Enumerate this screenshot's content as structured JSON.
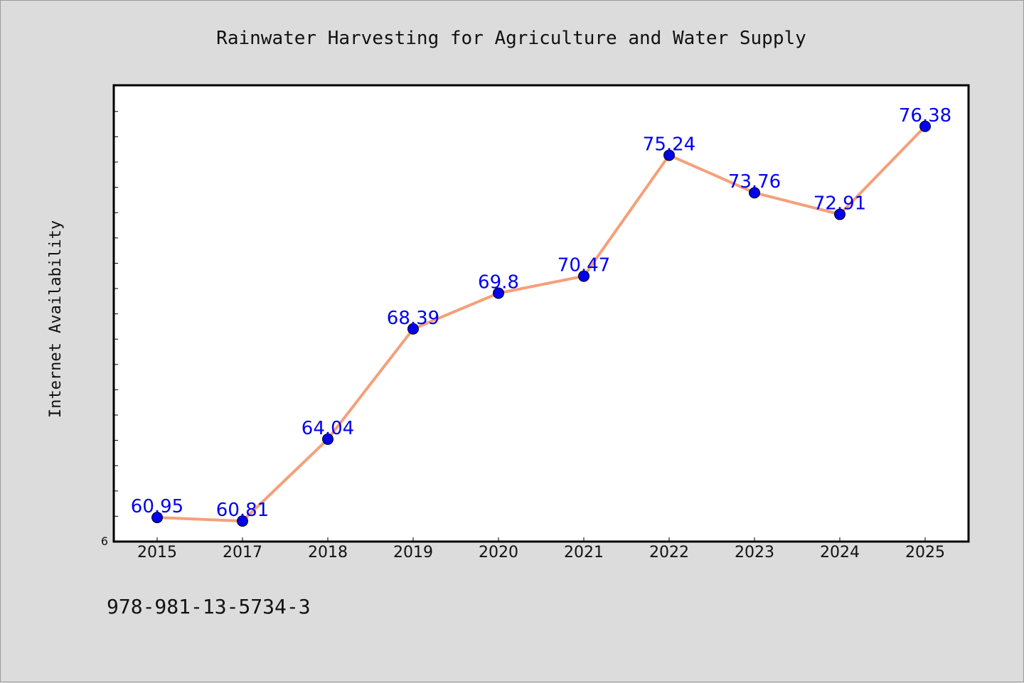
{
  "chart_data": {
    "type": "line",
    "title": "Rainwater Harvesting for Agriculture and Water Supply",
    "xlabel": "",
    "ylabel": "Internet Availability",
    "categories": [
      "2015",
      "2017",
      "2018",
      "2019",
      "2020",
      "2021",
      "2022",
      "2023",
      "2024",
      "2025"
    ],
    "series": [
      {
        "values": [
          60.95,
          60.81,
          64.04,
          68.39,
          69.8,
          70.47,
          75.24,
          73.76,
          72.91,
          76.38
        ],
        "data_labels": [
          "60.95",
          "60.81",
          "64.04",
          "68.39",
          "69.8",
          "70.47",
          "75.24",
          "73.76",
          "72.91",
          "76.38"
        ],
        "line_color": "#f4a07a",
        "marker_color": "#0000ee",
        "label_color": "#0000ee"
      }
    ],
    "ylim": [
      60,
      78
    ],
    "y_tick_labels": [
      "6"
    ],
    "grid": false,
    "legend": "none"
  },
  "footer_text": "978-981-13-5734-3",
  "colors": {
    "background": "#dcdcdc",
    "plot_area": "#ffffff",
    "frame": "#000000"
  }
}
